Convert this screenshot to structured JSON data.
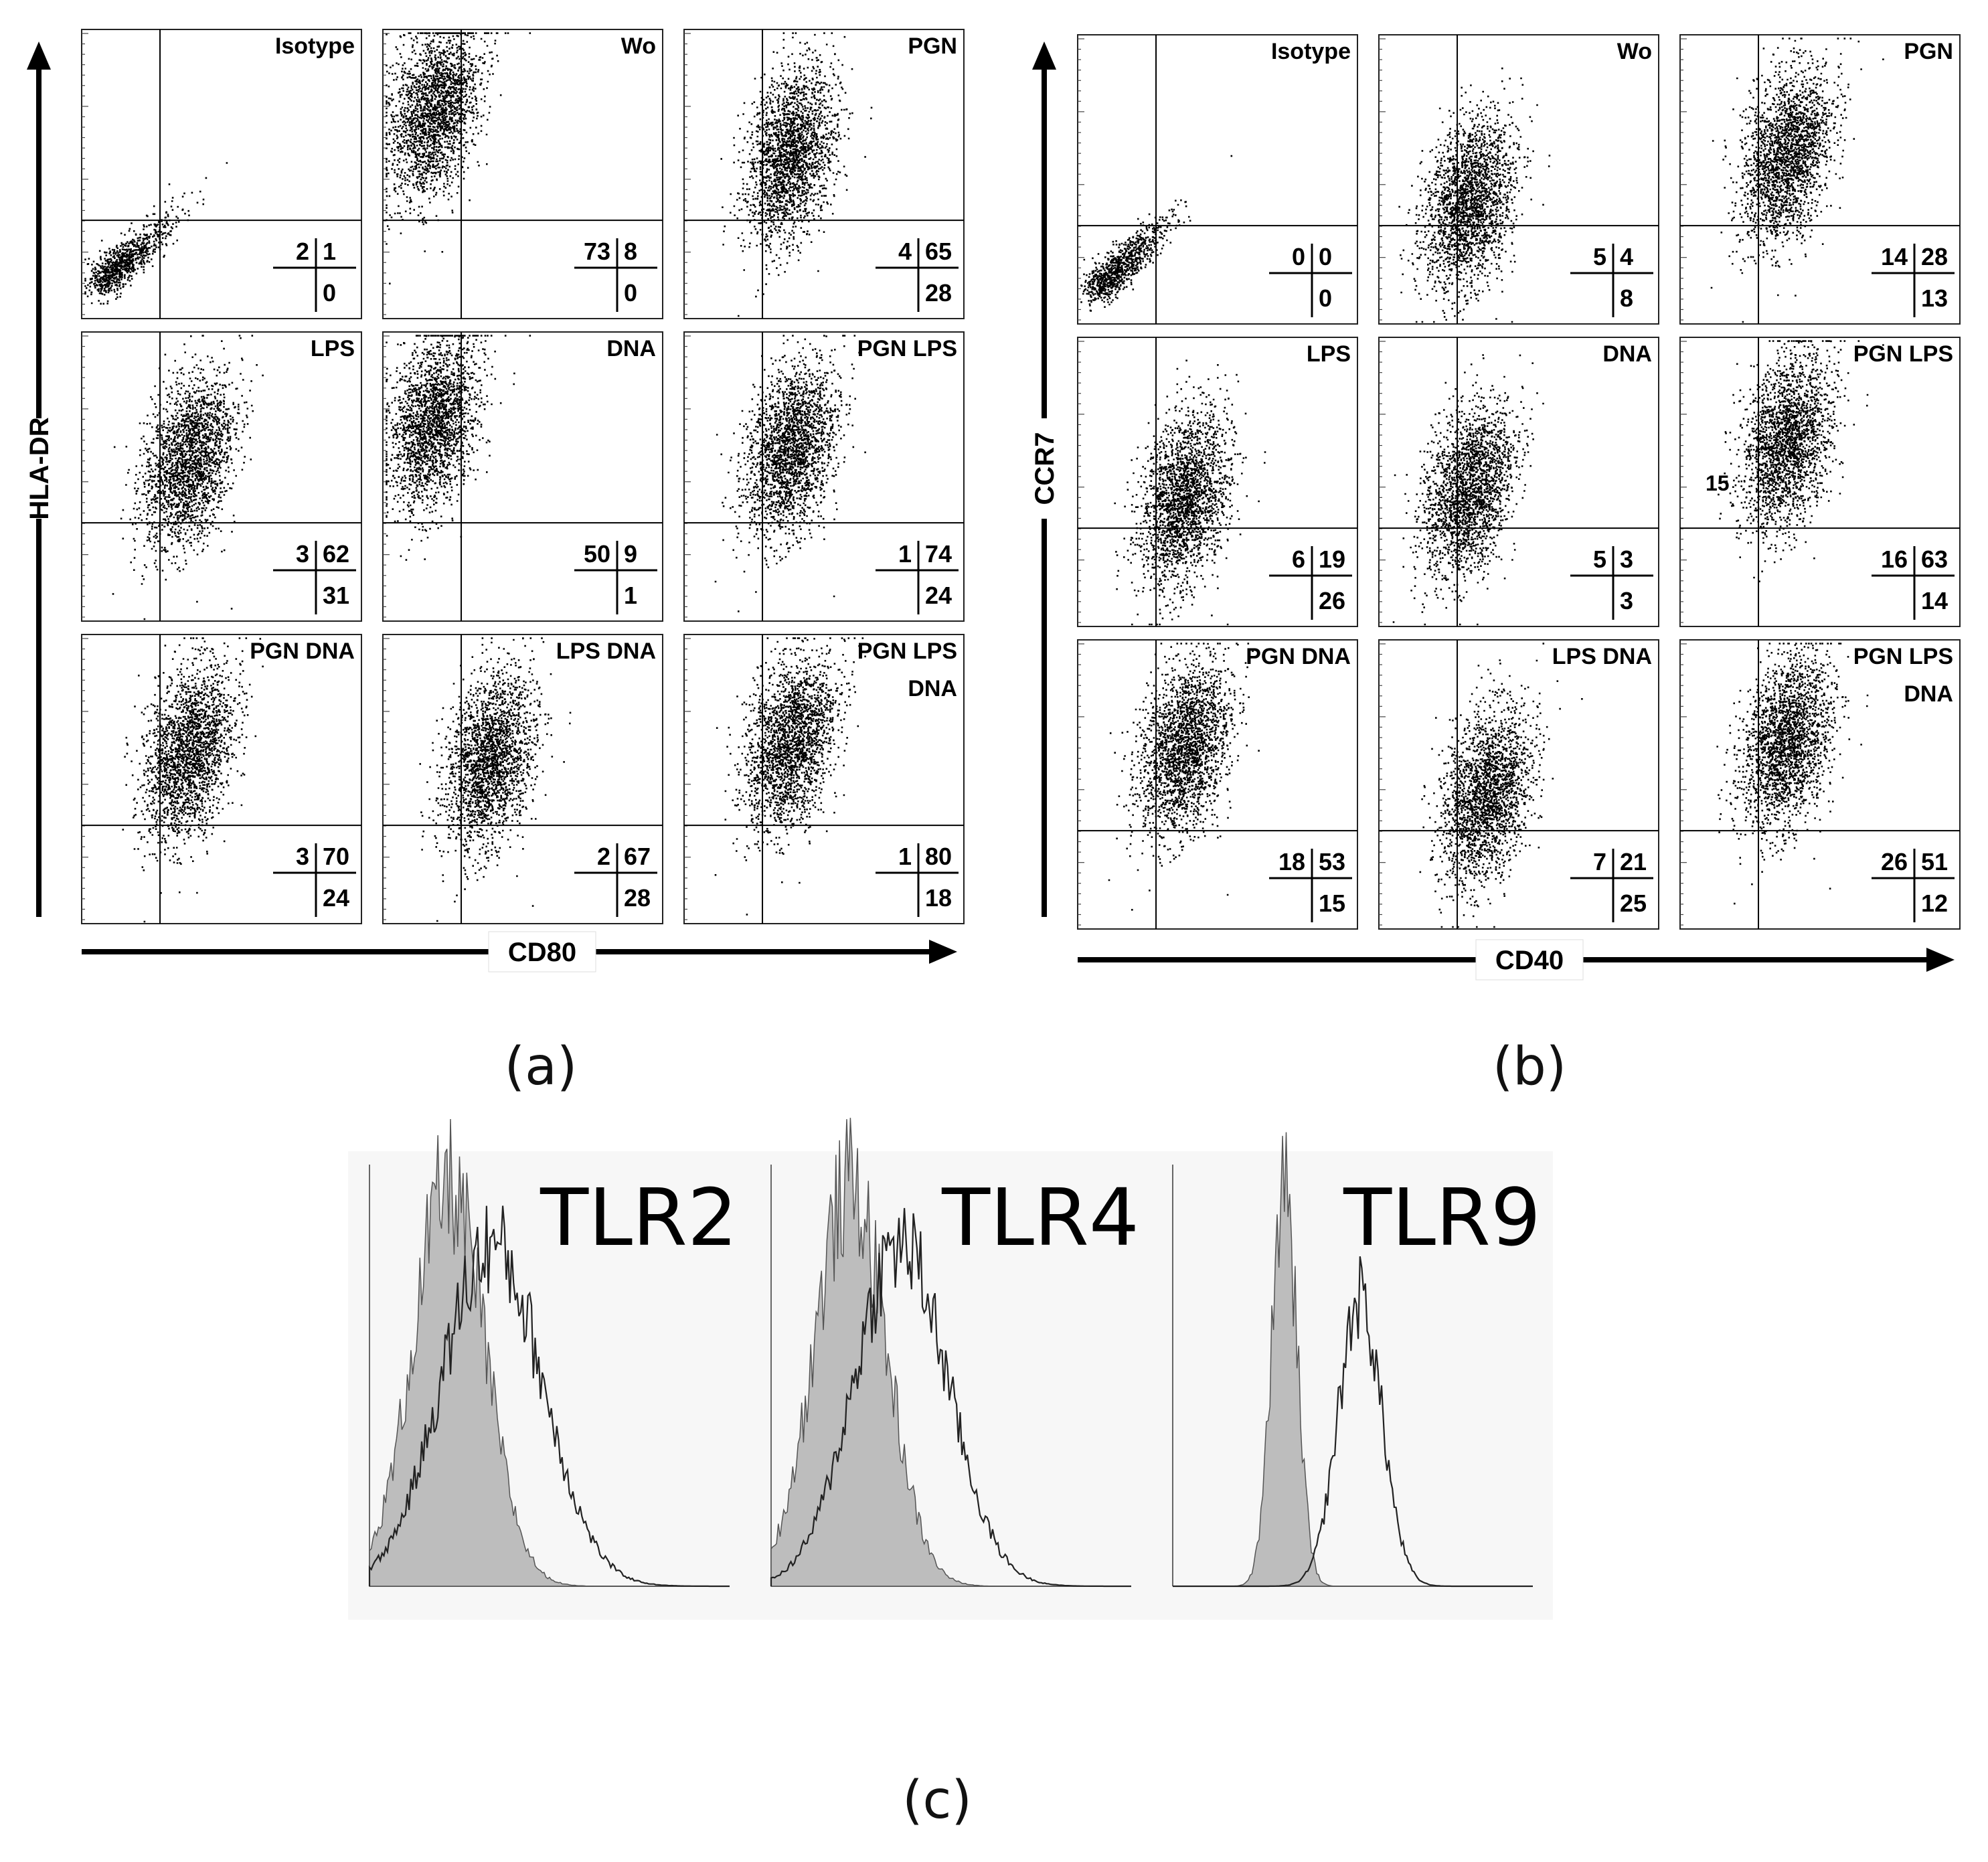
{
  "colors": {
    "ink": "#000000",
    "fill_gray": "#bdbdbd",
    "background": "#ffffff",
    "histo_bg": "#f7f7f7"
  },
  "figure": {
    "panel_a": {
      "label": "(a)",
      "x_axis": "CD80",
      "y_axis": "HLA-DR",
      "cells": [
        {
          "title": "Isotype",
          "quadrants": {
            "ul": "2",
            "ur": "1",
            "lr": "0"
          }
        },
        {
          "title": "Wo",
          "quadrants": {
            "ul": "73",
            "ur": "8",
            "lr": "0"
          }
        },
        {
          "title": "PGN",
          "quadrants": {
            "ul": "4",
            "ur": "65",
            "lr": "28"
          }
        },
        {
          "title": "LPS",
          "quadrants": {
            "ul": "3",
            "ur": "62",
            "lr": "31"
          }
        },
        {
          "title": "DNA",
          "quadrants": {
            "ul": "50",
            "ur": "9",
            "lr": "1"
          }
        },
        {
          "title": "PGN LPS",
          "quadrants": {
            "ul": "1",
            "ur": "74",
            "lr": "24"
          }
        },
        {
          "title": "PGN DNA",
          "quadrants": {
            "ul": "3",
            "ur": "70",
            "lr": "24"
          }
        },
        {
          "title": "LPS DNA",
          "quadrants": {
            "ul": "2",
            "ur": "67",
            "lr": "28"
          }
        },
        {
          "title": "PGN LPS",
          "title2": "DNA",
          "quadrants": {
            "ul": "1",
            "ur": "80",
            "lr": "18"
          }
        }
      ]
    },
    "panel_b": {
      "label": "(b)",
      "x_axis": "CD40",
      "y_axis": "CCR7",
      "cells": [
        {
          "title": "Isotype",
          "quadrants": {
            "ul": "0",
            "ur": "0",
            "lr": "0"
          }
        },
        {
          "title": "Wo",
          "quadrants": {
            "ul": "5",
            "ur": "4",
            "lr": "8"
          }
        },
        {
          "title": "PGN",
          "quadrants": {
            "ul": "14",
            "ur": "28",
            "lr": "13"
          }
        },
        {
          "title": "LPS",
          "quadrants": {
            "ul": "6",
            "ur": "19",
            "lr": "26"
          }
        },
        {
          "title": "DNA",
          "quadrants": {
            "ul": "5",
            "ur": "3",
            "lr": "3"
          }
        },
        {
          "title": "PGN LPS",
          "extra": "15",
          "quadrants": {
            "ul": "16",
            "ur": "63",
            "lr": "14"
          }
        },
        {
          "title": "PGN DNA",
          "quadrants": {
            "ul": "18",
            "ur": "53",
            "lr": "15"
          }
        },
        {
          "title": "LPS DNA",
          "quadrants": {
            "ul": "7",
            "ur": "21",
            "lr": "25"
          }
        },
        {
          "title": "PGN LPS",
          "title2": "DNA",
          "quadrants": {
            "ul": "26",
            "ur": "51",
            "lr": "12"
          }
        }
      ]
    },
    "panel_c": {
      "label": "(c)",
      "histograms": [
        {
          "title": "TLR2",
          "isotype_peak": 0.22,
          "isotype_width": 0.1,
          "stained_peak": 0.34,
          "stained_width": 0.14
        },
        {
          "title": "TLR4",
          "isotype_peak": 0.22,
          "isotype_width": 0.1,
          "stained_peak": 0.36,
          "stained_width": 0.13
        },
        {
          "title": "TLR9",
          "isotype_peak": 0.31,
          "isotype_width": 0.035,
          "stained_peak": 0.52,
          "stained_width": 0.06
        }
      ]
    }
  }
}
